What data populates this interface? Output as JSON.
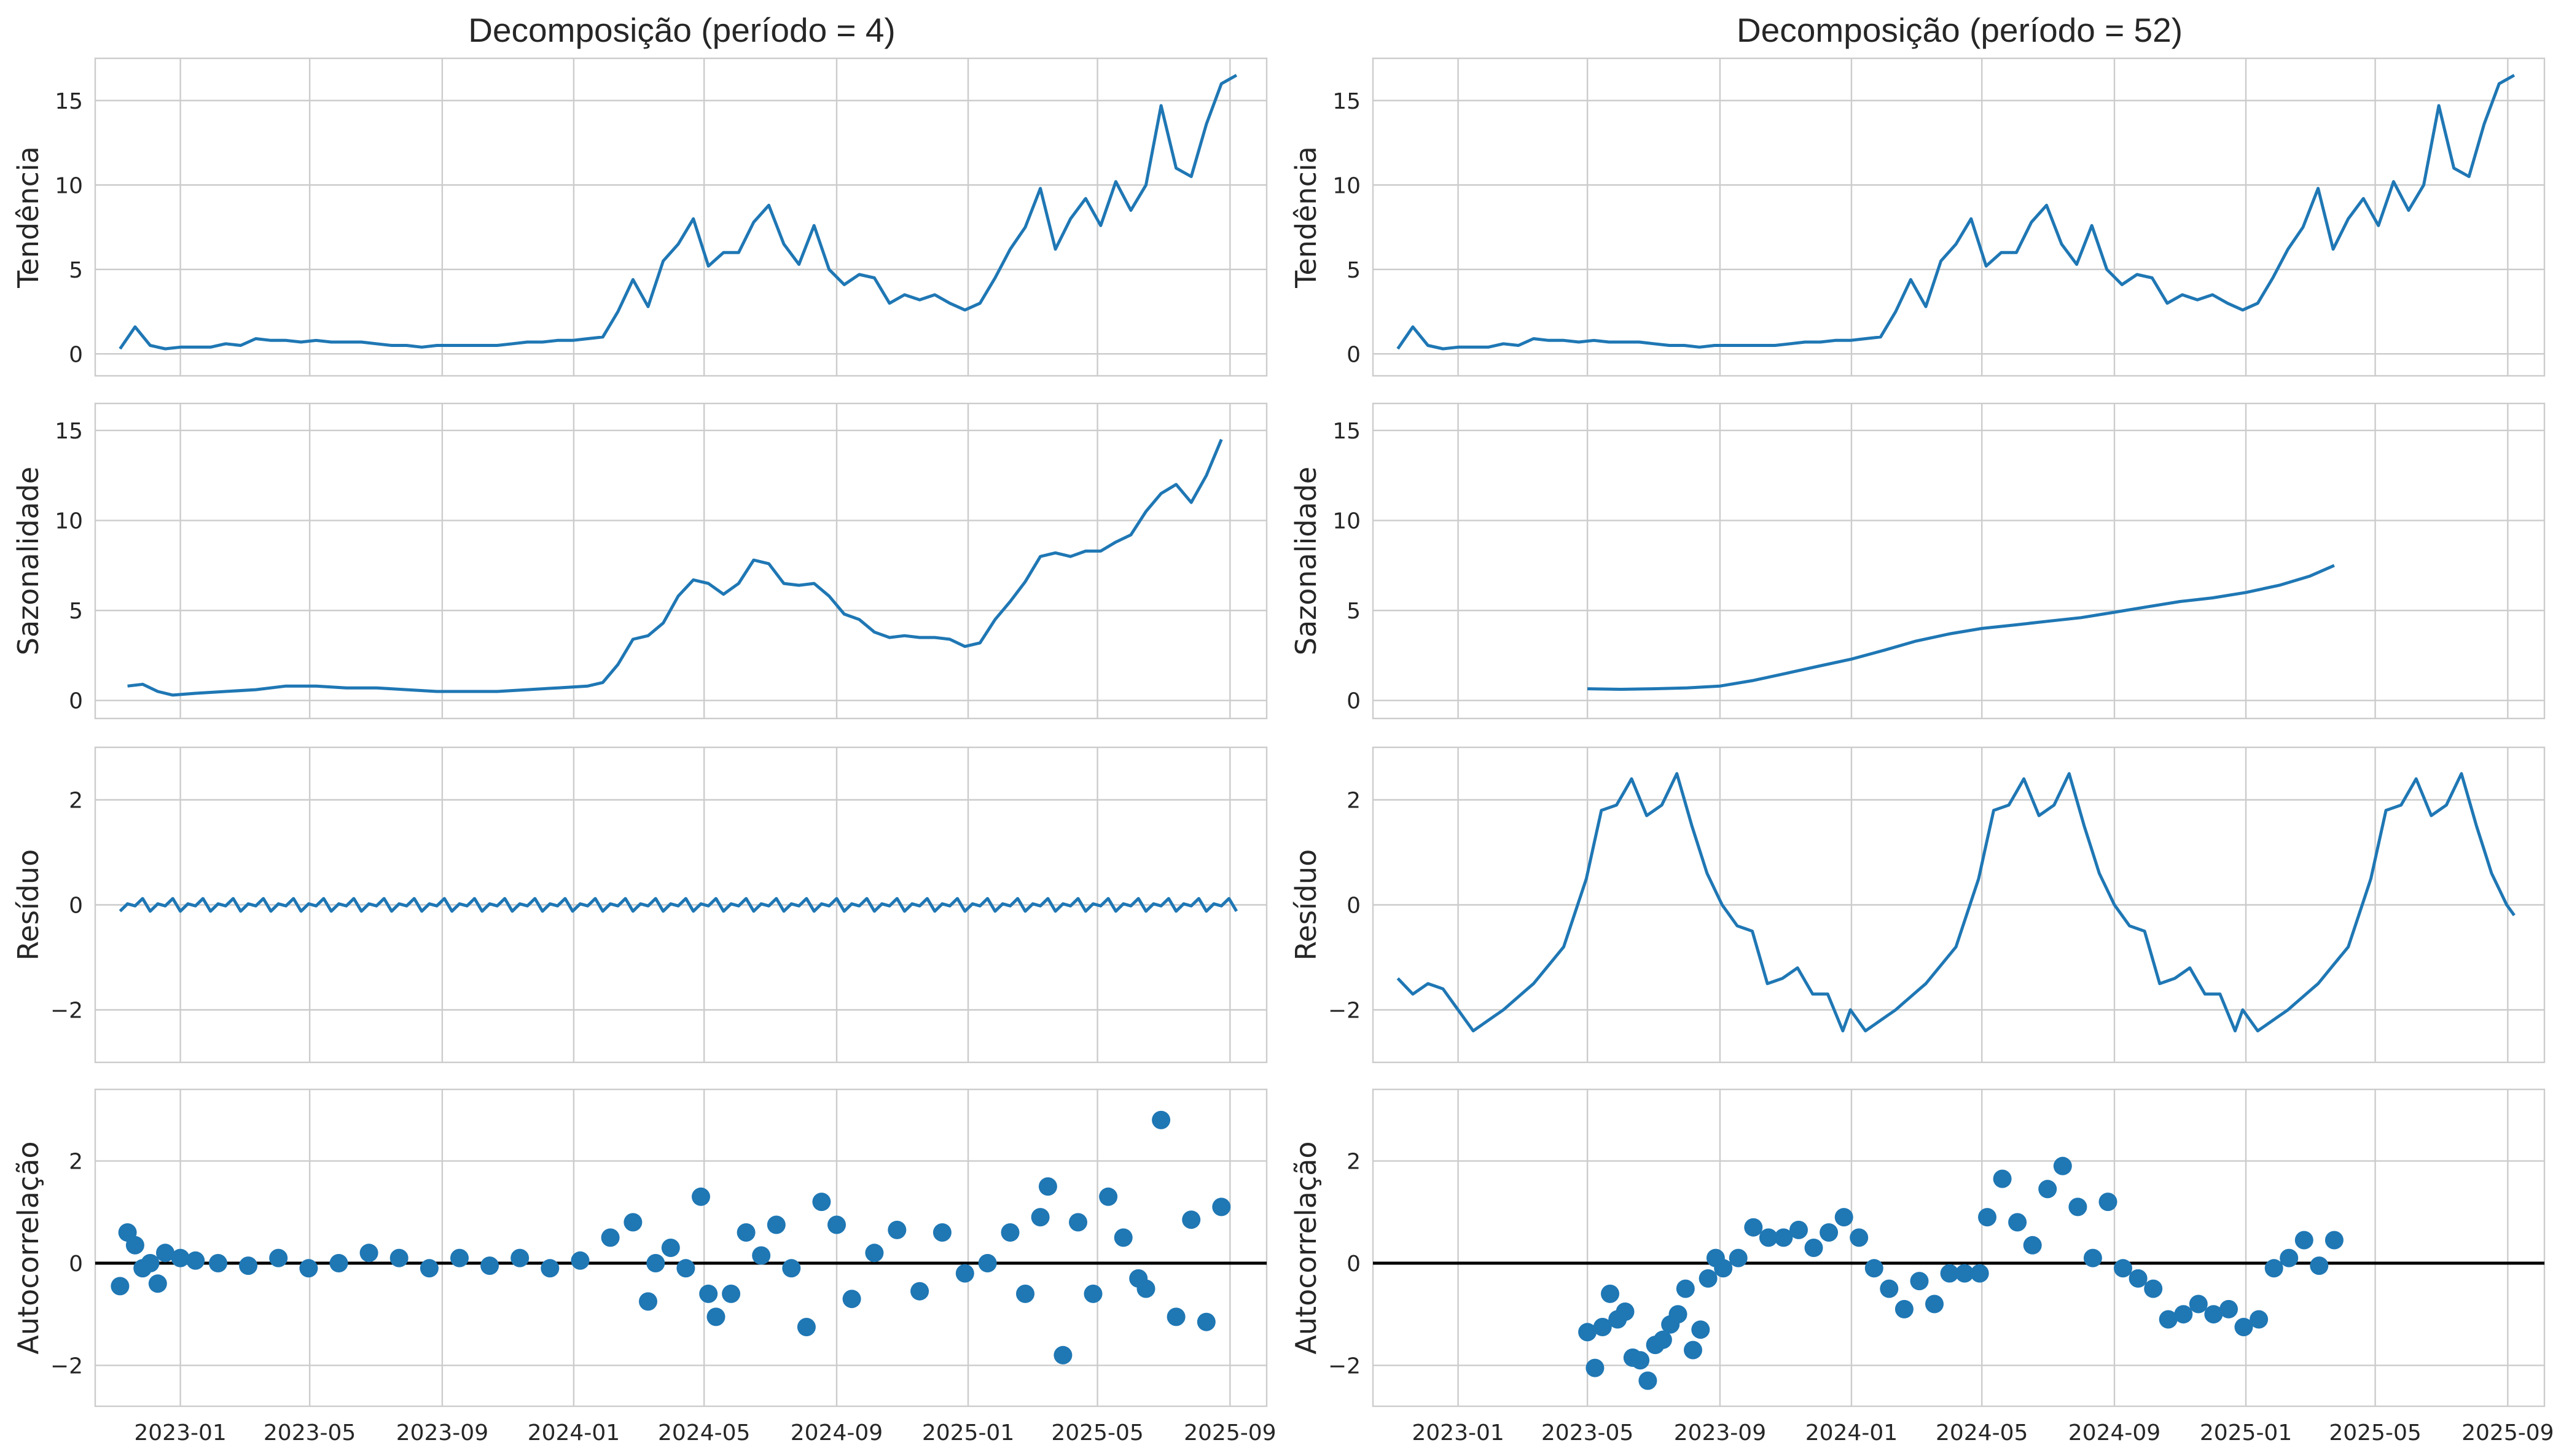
{
  "colors": {
    "series": "#1f77b4",
    "grid": "#cccccc",
    "frame": "#cccccc",
    "zero_line": "#000000",
    "background": "#ffffff"
  },
  "x_ticks": [
    "2023-01",
    "2023-05",
    "2023-09",
    "2024-01",
    "2024-05",
    "2024-09",
    "2025-01",
    "2025-05",
    "2025-09"
  ],
  "chart_data": [
    {
      "type": "line",
      "panel": "trend",
      "title": "Decomposição (período = 4)",
      "ylabel": "Tendência",
      "ylim": [
        -1.3,
        17.5
      ],
      "yticks": [
        0,
        5,
        10,
        15
      ],
      "grid": true,
      "series": [
        {
          "x": [
            "2022-11-06",
            "2022-11-20",
            "2022-12-04",
            "2022-12-18",
            "2023-01-01",
            "2023-01-15",
            "2023-01-29",
            "2023-02-12",
            "2023-02-26",
            "2023-03-12",
            "2023-03-26",
            "2023-04-09",
            "2023-04-23",
            "2023-05-07",
            "2023-05-21",
            "2023-06-04",
            "2023-06-18",
            "2023-07-02",
            "2023-07-16",
            "2023-07-30",
            "2023-08-13",
            "2023-08-27",
            "2023-09-10",
            "2023-09-24",
            "2023-10-08",
            "2023-10-22",
            "2023-11-05",
            "2023-11-19",
            "2023-12-03",
            "2023-12-17",
            "2023-12-31",
            "2024-01-14",
            "2024-01-28",
            "2024-02-11",
            "2024-02-25",
            "2024-03-10",
            "2024-03-24",
            "2024-04-07",
            "2024-04-21",
            "2024-05-05",
            "2024-05-19",
            "2024-06-02",
            "2024-06-16",
            "2024-06-30",
            "2024-07-14",
            "2024-07-28",
            "2024-08-11",
            "2024-08-25",
            "2024-09-08",
            "2024-09-22",
            "2024-10-06",
            "2024-10-20",
            "2024-11-03",
            "2024-11-17",
            "2024-12-01",
            "2024-12-15",
            "2024-12-29",
            "2025-01-12",
            "2025-01-26",
            "2025-02-09",
            "2025-02-23",
            "2025-03-09",
            "2025-03-23",
            "2025-04-06",
            "2025-04-20",
            "2025-05-04",
            "2025-05-18",
            "2025-06-01",
            "2025-06-15",
            "2025-06-29",
            "2025-07-13",
            "2025-07-27",
            "2025-08-10",
            "2025-08-24",
            "2025-09-07"
          ],
          "values": [
            0.3,
            1.6,
            0.5,
            0.3,
            0.4,
            0.4,
            0.4,
            0.6,
            0.5,
            0.9,
            0.8,
            0.8,
            0.7,
            0.8,
            0.7,
            0.7,
            0.7,
            0.6,
            0.5,
            0.5,
            0.4,
            0.5,
            0.5,
            0.5,
            0.5,
            0.5,
            0.6,
            0.7,
            0.7,
            0.8,
            0.8,
            0.9,
            1.0,
            2.5,
            4.4,
            2.8,
            5.5,
            6.5,
            8.0,
            5.2,
            6.0,
            6.0,
            7.8,
            8.8,
            6.5,
            5.3,
            7.6,
            5.0,
            4.1,
            4.7,
            4.5,
            3.0,
            3.5,
            3.2,
            3.5,
            3.0,
            2.6,
            3.0,
            4.5,
            6.2,
            7.5,
            9.8,
            6.2,
            8.0,
            9.2,
            7.6,
            10.2,
            8.5,
            10.0,
            14.7,
            11.0,
            10.5,
            13.6,
            16.0,
            16.5
          ]
        }
      ]
    },
    {
      "type": "line",
      "panel": "trend",
      "title": "Decomposição (período = 52)",
      "ylabel": "Tendência",
      "ylim": [
        -1.3,
        17.5
      ],
      "yticks": [
        0,
        5,
        10,
        15
      ],
      "grid": true,
      "series": [
        {
          "x": [
            "2022-11-06",
            "2022-11-20",
            "2022-12-04",
            "2022-12-18",
            "2023-01-01",
            "2023-01-15",
            "2023-01-29",
            "2023-02-12",
            "2023-02-26",
            "2023-03-12",
            "2023-03-26",
            "2023-04-09",
            "2023-04-23",
            "2023-05-07",
            "2023-05-21",
            "2023-06-04",
            "2023-06-18",
            "2023-07-02",
            "2023-07-16",
            "2023-07-30",
            "2023-08-13",
            "2023-08-27",
            "2023-09-10",
            "2023-09-24",
            "2023-10-08",
            "2023-10-22",
            "2023-11-05",
            "2023-11-19",
            "2023-12-03",
            "2023-12-17",
            "2023-12-31",
            "2024-01-14",
            "2024-01-28",
            "2024-02-11",
            "2024-02-25",
            "2024-03-10",
            "2024-03-24",
            "2024-04-07",
            "2024-04-21",
            "2024-05-05",
            "2024-05-19",
            "2024-06-02",
            "2024-06-16",
            "2024-06-30",
            "2024-07-14",
            "2024-07-28",
            "2024-08-11",
            "2024-08-25",
            "2024-09-08",
            "2024-09-22",
            "2024-10-06",
            "2024-10-20",
            "2024-11-03",
            "2024-11-17",
            "2024-12-01",
            "2024-12-15",
            "2024-12-29",
            "2025-01-12",
            "2025-01-26",
            "2025-02-09",
            "2025-02-23",
            "2025-03-09",
            "2025-03-23",
            "2025-04-06",
            "2025-04-20",
            "2025-05-04",
            "2025-05-18",
            "2025-06-01",
            "2025-06-15",
            "2025-06-29",
            "2025-07-13",
            "2025-07-27",
            "2025-08-10",
            "2025-08-24",
            "2025-09-07"
          ],
          "values": [
            0.3,
            1.6,
            0.5,
            0.3,
            0.4,
            0.4,
            0.4,
            0.6,
            0.5,
            0.9,
            0.8,
            0.8,
            0.7,
            0.8,
            0.7,
            0.7,
            0.7,
            0.6,
            0.5,
            0.5,
            0.4,
            0.5,
            0.5,
            0.5,
            0.5,
            0.5,
            0.6,
            0.7,
            0.7,
            0.8,
            0.8,
            0.9,
            1.0,
            2.5,
            4.4,
            2.8,
            5.5,
            6.5,
            8.0,
            5.2,
            6.0,
            6.0,
            7.8,
            8.8,
            6.5,
            5.3,
            7.6,
            5.0,
            4.1,
            4.7,
            4.5,
            3.0,
            3.5,
            3.2,
            3.5,
            3.0,
            2.6,
            3.0,
            4.5,
            6.2,
            7.5,
            9.8,
            6.2,
            8.0,
            9.2,
            7.6,
            10.2,
            8.5,
            10.0,
            14.7,
            11.0,
            10.5,
            13.6,
            16.0,
            16.5
          ]
        }
      ]
    },
    {
      "type": "line",
      "panel": "seasonal",
      "ylabel": "Sazonalidade",
      "ylim": [
        -1.0,
        16.5
      ],
      "yticks": [
        0,
        5,
        10,
        15
      ],
      "grid": true,
      "series": [
        {
          "x": [
            "2022-11-13",
            "2022-11-27",
            "2022-12-11",
            "2022-12-25",
            "2023-01-15",
            "2023-02-12",
            "2023-03-12",
            "2023-04-09",
            "2023-05-07",
            "2023-06-04",
            "2023-07-02",
            "2023-07-30",
            "2023-08-27",
            "2023-09-24",
            "2023-10-22",
            "2023-11-19",
            "2023-12-17",
            "2024-01-14",
            "2024-01-28",
            "2024-02-11",
            "2024-02-25",
            "2024-03-10",
            "2024-03-24",
            "2024-04-07",
            "2024-04-21",
            "2024-05-05",
            "2024-05-19",
            "2024-06-02",
            "2024-06-16",
            "2024-06-30",
            "2024-07-14",
            "2024-07-28",
            "2024-08-11",
            "2024-08-25",
            "2024-09-08",
            "2024-09-22",
            "2024-10-06",
            "2024-10-20",
            "2024-11-03",
            "2024-11-17",
            "2024-12-01",
            "2024-12-15",
            "2024-12-29",
            "2025-01-12",
            "2025-01-26",
            "2025-02-09",
            "2025-02-23",
            "2025-03-09",
            "2025-03-23",
            "2025-04-06",
            "2025-04-20",
            "2025-05-04",
            "2025-05-18",
            "2025-06-01",
            "2025-06-15",
            "2025-06-29",
            "2025-07-13",
            "2025-07-27",
            "2025-08-10",
            "2025-08-24"
          ],
          "values": [
            0.8,
            0.9,
            0.5,
            0.3,
            0.4,
            0.5,
            0.6,
            0.8,
            0.8,
            0.7,
            0.7,
            0.6,
            0.5,
            0.5,
            0.5,
            0.6,
            0.7,
            0.8,
            1.0,
            2.0,
            3.4,
            3.6,
            4.3,
            5.8,
            6.7,
            6.5,
            5.9,
            6.5,
            7.8,
            7.6,
            6.5,
            6.4,
            6.5,
            5.8,
            4.8,
            4.5,
            3.8,
            3.5,
            3.6,
            3.5,
            3.5,
            3.4,
            3.0,
            3.2,
            4.5,
            5.5,
            6.6,
            8.0,
            8.2,
            8.0,
            8.3,
            8.3,
            8.8,
            9.2,
            10.5,
            11.5,
            12.0,
            11.0,
            12.5,
            14.5
          ]
        }
      ]
    },
    {
      "type": "line",
      "panel": "seasonal",
      "ylabel": "Sazonalidade",
      "ylim": [
        -1.0,
        16.5
      ],
      "yticks": [
        0,
        5,
        10,
        15
      ],
      "grid": true,
      "series": [
        {
          "x": [
            "2023-05-01",
            "2023-06-01",
            "2023-07-01",
            "2023-08-01",
            "2023-09-01",
            "2023-10-01",
            "2023-11-01",
            "2023-12-01",
            "2024-01-01",
            "2024-02-01",
            "2024-03-01",
            "2024-04-01",
            "2024-05-01",
            "2024-06-01",
            "2024-07-01",
            "2024-08-01",
            "2024-09-01",
            "2024-10-01",
            "2024-11-01",
            "2024-12-01",
            "2025-01-01",
            "2025-02-01",
            "2025-03-01",
            "2025-03-24"
          ],
          "values": [
            0.65,
            0.62,
            0.65,
            0.7,
            0.8,
            1.1,
            1.5,
            1.9,
            2.3,
            2.8,
            3.3,
            3.7,
            4.0,
            4.2,
            4.4,
            4.6,
            4.9,
            5.2,
            5.5,
            5.7,
            6.0,
            6.4,
            6.9,
            7.5
          ]
        }
      ]
    },
    {
      "type": "line",
      "panel": "residual",
      "ylabel": "Resíduo",
      "ylim": [
        -3.0,
        3.0
      ],
      "yticks": [
        -2,
        0,
        2
      ],
      "grid": true,
      "series": [
        {
          "name": "",
          "pattern": "period-4 cycle",
          "values": [
            -0.12,
            0.02,
            -0.02,
            0.12
          ]
        }
      ]
    },
    {
      "type": "line",
      "panel": "residual",
      "ylabel": "Resíduo",
      "ylim": [
        -3.0,
        3.0
      ],
      "yticks": [
        -2,
        0,
        2
      ],
      "grid": true,
      "series": [
        {
          "name": "",
          "pattern": "repeats every 52 weeks",
          "x": [
            "2022-11-06",
            "2022-11-20",
            "2022-12-04",
            "2022-12-18",
            "2023-01-15",
            "2023-02-12",
            "2023-03-12",
            "2023-04-09",
            "2023-04-30",
            "2023-05-14",
            "2023-05-28",
            "2023-06-11",
            "2023-06-25",
            "2023-07-09",
            "2023-07-23",
            "2023-08-06",
            "2023-08-20",
            "2023-09-03",
            "2023-09-17",
            "2023-10-01",
            "2023-10-15",
            "2023-10-29",
            "2023-11-12",
            "2023-11-26",
            "2023-12-10",
            "2023-12-24"
          ],
          "values": [
            -1.4,
            -1.7,
            -1.5,
            -1.6,
            -2.4,
            -2.0,
            -1.5,
            -0.8,
            0.5,
            1.8,
            1.9,
            2.4,
            1.7,
            1.9,
            2.5,
            1.5,
            0.6,
            0.0,
            -0.4,
            -0.5,
            -1.5,
            -1.4,
            -1.2,
            -1.7,
            -1.7,
            -2.4
          ]
        }
      ]
    },
    {
      "type": "scatter",
      "panel": "autocorrelation",
      "ylabel": "Autocorrelação",
      "ylim": [
        -2.8,
        3.4
      ],
      "yticks": [
        -2,
        0,
        2
      ],
      "grid": true,
      "reference_line_y": 0,
      "series": [
        {
          "x": [
            "2022-11-06",
            "2022-11-13",
            "2022-11-20",
            "2022-11-27",
            "2022-12-04",
            "2022-12-11",
            "2022-12-18",
            "2023-01-01",
            "2023-01-15",
            "2023-02-05",
            "2023-03-05",
            "2023-04-02",
            "2023-04-30",
            "2023-05-28",
            "2023-06-25",
            "2023-07-23",
            "2023-08-20",
            "2023-09-17",
            "2023-10-15",
            "2023-11-12",
            "2023-12-10",
            "2024-01-07",
            "2024-02-04",
            "2024-02-25",
            "2024-03-10",
            "2024-03-17",
            "2024-03-31",
            "2024-04-14",
            "2024-04-28",
            "2024-05-05",
            "2024-05-12",
            "2024-05-26",
            "2024-06-09",
            "2024-06-23",
            "2024-07-07",
            "2024-07-21",
            "2024-08-04",
            "2024-08-18",
            "2024-09-01",
            "2024-09-15",
            "2024-10-06",
            "2024-10-27",
            "2024-11-17",
            "2024-12-08",
            "2024-12-29",
            "2025-01-19",
            "2025-02-09",
            "2025-02-23",
            "2025-03-09",
            "2025-03-16",
            "2025-03-30",
            "2025-04-13",
            "2025-04-27",
            "2025-05-11",
            "2025-05-25",
            "2025-06-08",
            "2025-06-15",
            "2025-06-29",
            "2025-07-13",
            "2025-07-27",
            "2025-08-10",
            "2025-08-24"
          ],
          "values": [
            -0.45,
            0.6,
            0.35,
            -0.1,
            0.0,
            -0.4,
            0.2,
            0.1,
            0.05,
            0.0,
            -0.05,
            0.1,
            -0.1,
            0.0,
            0.2,
            0.1,
            -0.1,
            0.1,
            -0.05,
            0.1,
            -0.1,
            0.05,
            0.5,
            0.8,
            -0.75,
            0.0,
            0.3,
            -0.1,
            1.3,
            -0.6,
            -1.05,
            -0.6,
            0.6,
            0.15,
            0.75,
            -0.1,
            -1.25,
            1.2,
            0.75,
            -0.7,
            0.2,
            0.65,
            -0.55,
            0.6,
            -0.2,
            0.0,
            0.6,
            -0.6,
            0.9,
            1.5,
            -1.8,
            0.8,
            -0.6,
            1.3,
            0.5,
            -0.3,
            -0.5,
            2.8,
            -1.05,
            0.85,
            -1.15,
            1.1
          ]
        }
      ]
    },
    {
      "type": "scatter",
      "panel": "autocorrelation",
      "ylabel": "Autocorrelação",
      "ylim": [
        -2.8,
        3.4
      ],
      "yticks": [
        -2,
        0,
        2
      ],
      "grid": true,
      "reference_line_y": 0,
      "series": [
        {
          "x": [
            "2023-05-01",
            "2023-05-08",
            "2023-05-15",
            "2023-05-22",
            "2023-05-29",
            "2023-06-05",
            "2023-06-12",
            "2023-06-19",
            "2023-06-26",
            "2023-07-03",
            "2023-07-10",
            "2023-07-17",
            "2023-07-24",
            "2023-07-31",
            "2023-08-07",
            "2023-08-14",
            "2023-08-21",
            "2023-08-28",
            "2023-09-04",
            "2023-09-18",
            "2023-10-02",
            "2023-10-16",
            "2023-10-30",
            "2023-11-13",
            "2023-11-27",
            "2023-12-11",
            "2023-12-25",
            "2024-01-08",
            "2024-01-22",
            "2024-02-05",
            "2024-02-19",
            "2024-03-04",
            "2024-03-18",
            "2024-04-01",
            "2024-04-15",
            "2024-04-29",
            "2024-05-06",
            "2024-05-20",
            "2024-06-03",
            "2024-06-17",
            "2024-07-01",
            "2024-07-15",
            "2024-07-29",
            "2024-08-12",
            "2024-08-26",
            "2024-09-09",
            "2024-09-23",
            "2024-10-07",
            "2024-10-21",
            "2024-11-04",
            "2024-11-18",
            "2024-12-02",
            "2024-12-16",
            "2024-12-30",
            "2025-01-13",
            "2025-01-27",
            "2025-02-10",
            "2025-02-24",
            "2025-03-10",
            "2025-03-24"
          ],
          "values": [
            -1.35,
            -2.05,
            -1.25,
            -0.6,
            -1.1,
            -0.95,
            -1.85,
            -1.9,
            -2.3,
            -1.6,
            -1.5,
            -1.2,
            -1.0,
            -0.5,
            -1.7,
            -1.3,
            -0.3,
            0.1,
            -0.1,
            0.1,
            0.7,
            0.5,
            0.5,
            0.65,
            0.3,
            0.6,
            0.9,
            0.5,
            -0.1,
            -0.5,
            -0.9,
            -0.35,
            -0.8,
            -0.2,
            -0.2,
            -0.2,
            0.9,
            1.65,
            0.8,
            0.35,
            1.45,
            1.9,
            1.1,
            0.1,
            1.2,
            -0.1,
            -0.3,
            -0.5,
            -1.1,
            -1.0,
            -0.8,
            -1.0,
            -0.9,
            -1.25,
            -1.1,
            -0.1,
            0.1,
            0.45,
            -0.05,
            0.45
          ]
        }
      ]
    }
  ]
}
